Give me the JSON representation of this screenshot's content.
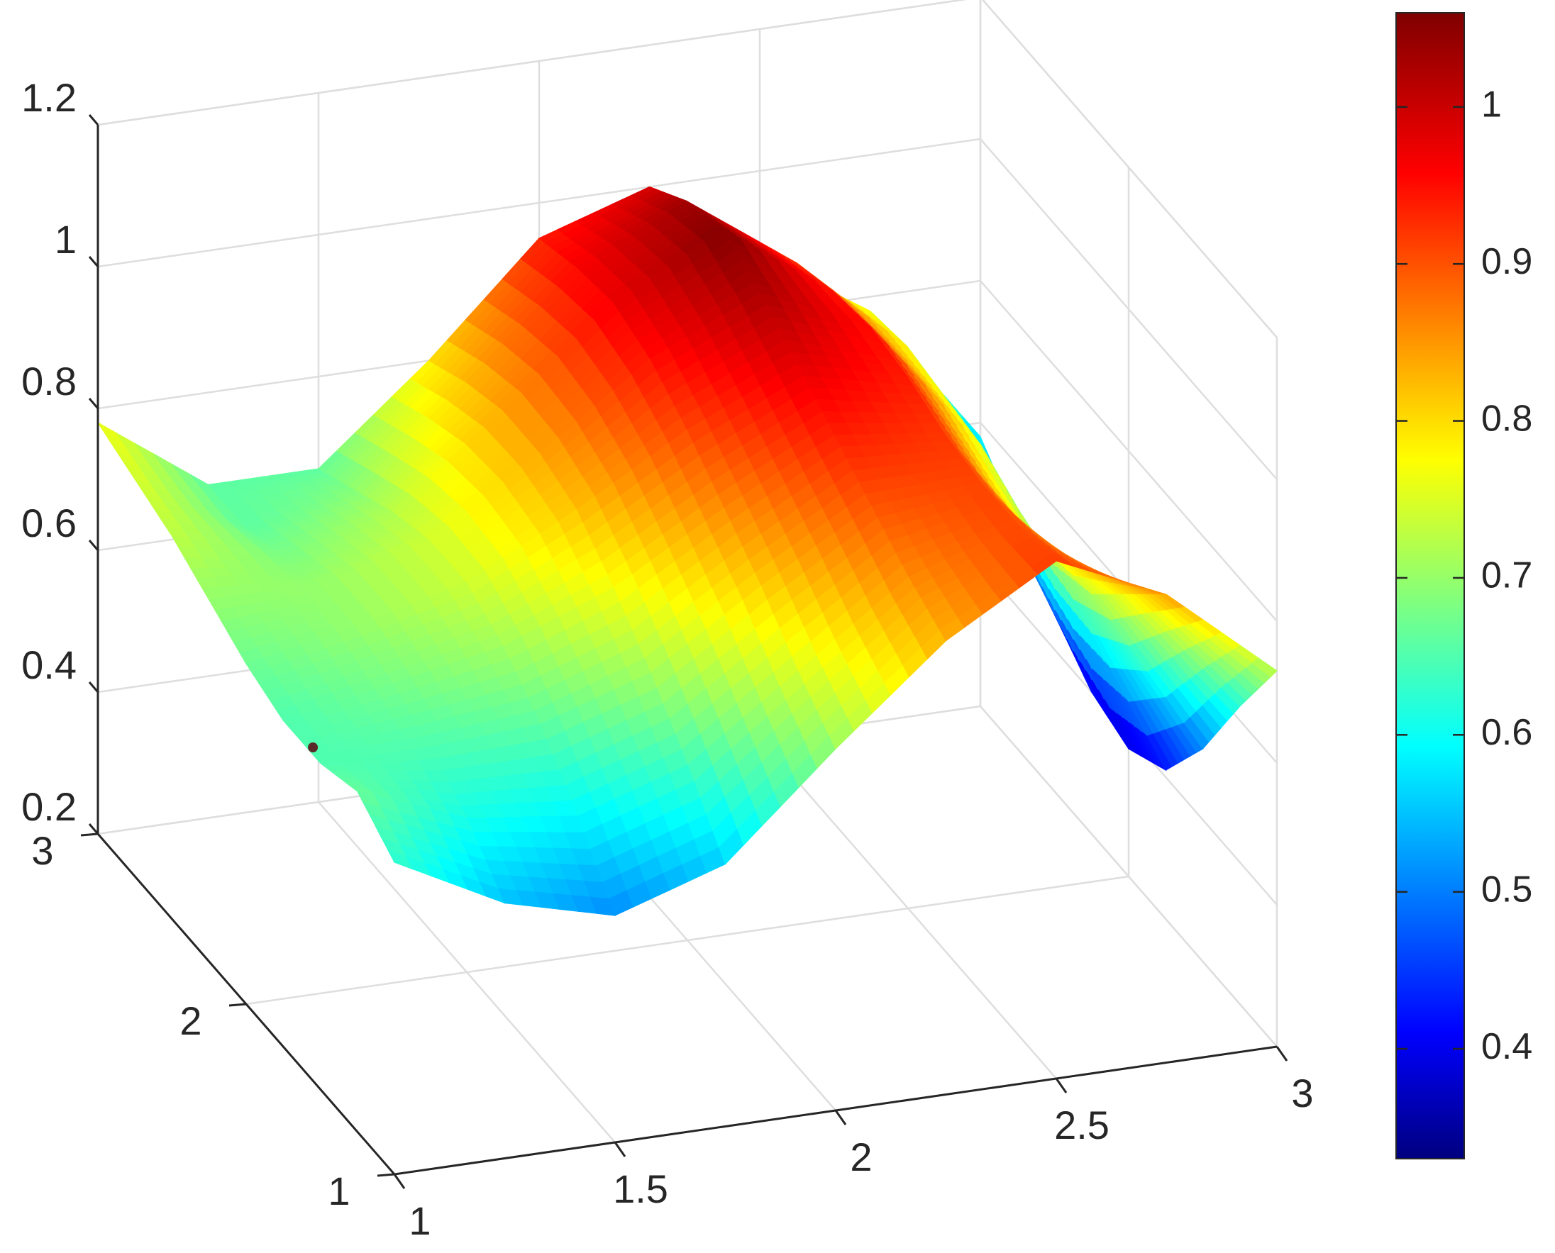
{
  "chart_data": {
    "type": "surface",
    "title": "",
    "xlabel": "",
    "ylabel": "",
    "zlabel": "",
    "colormap": "jet",
    "x_ticks": [
      "1",
      "1.5",
      "2",
      "2.5",
      "3"
    ],
    "y_ticks": [
      "1",
      "2",
      "3"
    ],
    "z_ticks": [
      "0.2",
      "0.4",
      "0.6",
      "0.8",
      "1",
      "1.2"
    ],
    "xlim": [
      1,
      3
    ],
    "ylim": [
      1,
      3
    ],
    "zlim": [
      0.2,
      1.2
    ],
    "colorbar": {
      "ticks": [
        "0.4",
        "0.5",
        "0.6",
        "0.7",
        "0.8",
        "0.9",
        "1"
      ],
      "range": [
        0.33,
        1.06
      ]
    },
    "grid": true,
    "marked_point": {
      "x": 1.0,
      "y": 1.55,
      "z": 0.67
    },
    "surface": {
      "x": [
        1.0,
        1.25,
        1.5,
        1.75,
        2.0,
        2.25,
        2.5,
        2.75,
        3.0
      ],
      "y": [
        1.0,
        1.25,
        1.5,
        1.75,
        2.0,
        2.25,
        2.5,
        2.75,
        3.0
      ],
      "z": [
        [
          0.64,
          0.56,
          0.52,
          0.57,
          0.71,
          0.84,
          0.93,
          0.86,
          0.73
        ],
        [
          0.68,
          0.62,
          0.6,
          0.65,
          0.76,
          0.87,
          0.92,
          0.8,
          0.62
        ],
        [
          0.66,
          0.66,
          0.67,
          0.72,
          0.82,
          0.91,
          0.92,
          0.74,
          0.5
        ],
        [
          0.66,
          0.69,
          0.72,
          0.78,
          0.87,
          0.95,
          0.93,
          0.72,
          0.41
        ],
        [
          0.68,
          0.71,
          0.75,
          0.83,
          0.92,
          0.99,
          0.95,
          0.74,
          0.38
        ],
        [
          0.71,
          0.71,
          0.75,
          0.85,
          0.96,
          1.03,
          0.96,
          0.77,
          0.4
        ],
        [
          0.74,
          0.69,
          0.73,
          0.85,
          0.98,
          1.06,
          0.95,
          0.78,
          0.45
        ],
        [
          0.76,
          0.67,
          0.7,
          0.83,
          0.97,
          1.04,
          0.93,
          0.79,
          0.52
        ],
        [
          0.78,
          0.67,
          0.67,
          0.8,
          0.95,
          1.0,
          0.88,
          0.78,
          0.58
        ]
      ]
    }
  }
}
